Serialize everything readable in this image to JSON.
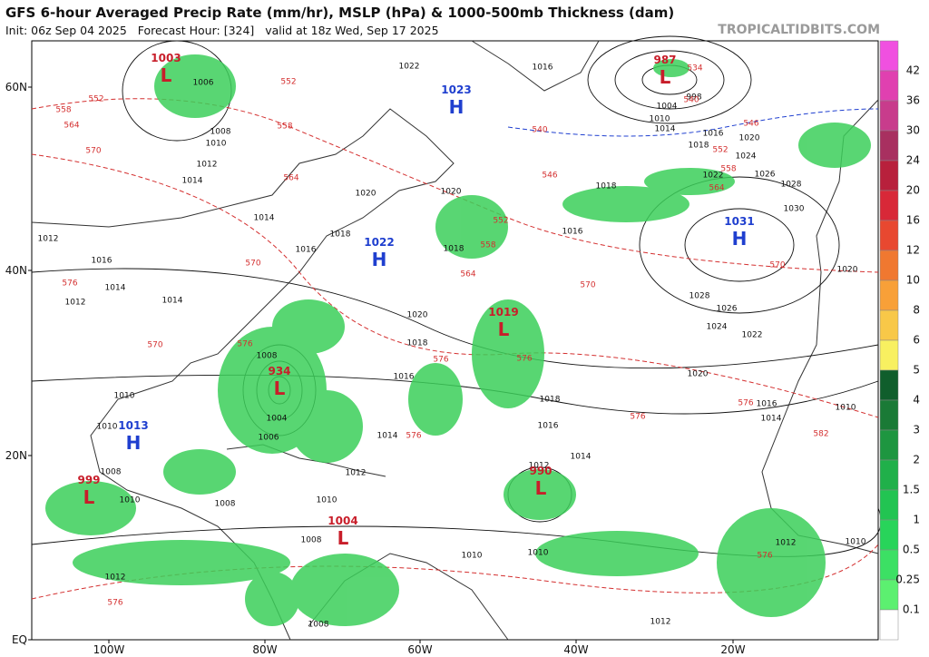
{
  "header": {
    "title": "GFS 6-hour Averaged Precip Rate (mm/hr), MSLP (hPa) & 1000-500mb Thickness (dam)",
    "subtitle": "Init: 06z Sep 04 2025   Forecast Hour: [324]   valid at 18z Wed, Sep 17 2025",
    "brand": "TROPICALTIDBITS.COM"
  },
  "map": {
    "lat_labels": [
      "60N",
      "40N",
      "20N",
      "EQ"
    ],
    "lon_labels": [
      "100W",
      "80W",
      "60W",
      "40W",
      "20W"
    ],
    "centers": [
      {
        "type": "L",
        "value": "1003"
      },
      {
        "type": "L",
        "value": "987"
      },
      {
        "type": "H",
        "value": "1023"
      },
      {
        "type": "H",
        "value": "1031"
      },
      {
        "type": "H",
        "value": "1022"
      },
      {
        "type": "L",
        "value": "1019"
      },
      {
        "type": "L",
        "value": "934"
      },
      {
        "type": "H",
        "value": "1013"
      },
      {
        "type": "L",
        "value": "999"
      },
      {
        "type": "L",
        "value": "990"
      },
      {
        "type": "L",
        "value": "1004"
      }
    ],
    "isobar_labels": [
      "1022",
      "1016",
      "1006",
      "1008",
      "1010",
      "1012",
      "1016",
      "1014",
      "1012",
      "1014",
      "1016",
      "1018",
      "1020",
      "1020",
      "1018",
      "1016",
      "1018",
      "1022",
      "1026",
      "1028",
      "1030",
      "1028",
      "1026",
      "1024",
      "1022",
      "1020",
      "1018",
      "1016",
      "1014",
      "1020",
      "1018",
      "1016",
      "1012",
      "1012",
      "1010",
      "1008",
      "1010",
      "1010",
      "1012",
      "1008",
      "1012",
      "1010",
      "1012",
      "1014",
      "1016",
      "1010",
      "1020",
      "1008",
      "1006",
      "1004",
      "1010",
      "1010",
      "1008",
      "1010",
      "1008",
      "1014",
      "1018",
      "1010",
      "1014",
      "1004",
      "998",
      "1016",
      "1020",
      "1024",
      "1012",
      "1014",
      "1014"
    ],
    "thickness_labels": [
      "552",
      "558",
      "564",
      "570",
      "552",
      "558",
      "564",
      "570",
      "570",
      "576",
      "576",
      "546",
      "552",
      "558",
      "564",
      "570",
      "570",
      "576",
      "576",
      "576",
      "576",
      "582",
      "576",
      "576",
      "564",
      "558",
      "552",
      "546",
      "540",
      "534",
      "540",
      "576"
    ]
  },
  "colorbar": {
    "labels": [
      "42",
      "36",
      "30",
      "24",
      "20",
      "16",
      "12",
      "10",
      "8",
      "6",
      "5",
      "4",
      "3",
      "2",
      "1.5",
      "1",
      "0.5",
      "0.25",
      "0.1"
    ],
    "colors": [
      "#f050e0",
      "#e040b0",
      "#c83c8c",
      "#a83060",
      "#b8203c",
      "#d82838",
      "#e84830",
      "#f07830",
      "#f8a038",
      "#f8c848",
      "#f8f060",
      "#105e2c",
      "#1a7a36",
      "#1e9640",
      "#20b04a",
      "#22c452",
      "#28d45a",
      "#3ce064",
      "#5cf070",
      "#ffffff"
    ]
  }
}
